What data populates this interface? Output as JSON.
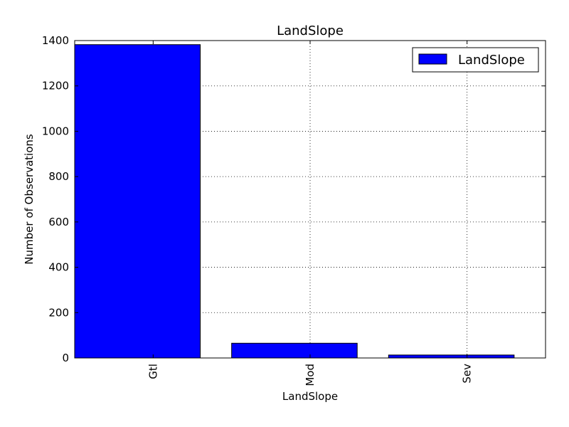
{
  "chart_data": {
    "type": "bar",
    "title": "LandSlope",
    "xlabel": "LandSlope",
    "ylabel": "Number of Observations",
    "categories": [
      "Gtl",
      "Mod",
      "Sev"
    ],
    "series": [
      {
        "name": "LandSlope",
        "values": [
          1382,
          65,
          13
        ],
        "color": "#0000ff"
      }
    ],
    "ylim": [
      0,
      1400
    ],
    "yticks": [
      0,
      200,
      400,
      600,
      800,
      1000,
      1200,
      1400
    ],
    "grid": true,
    "legend_position": "top-right"
  }
}
